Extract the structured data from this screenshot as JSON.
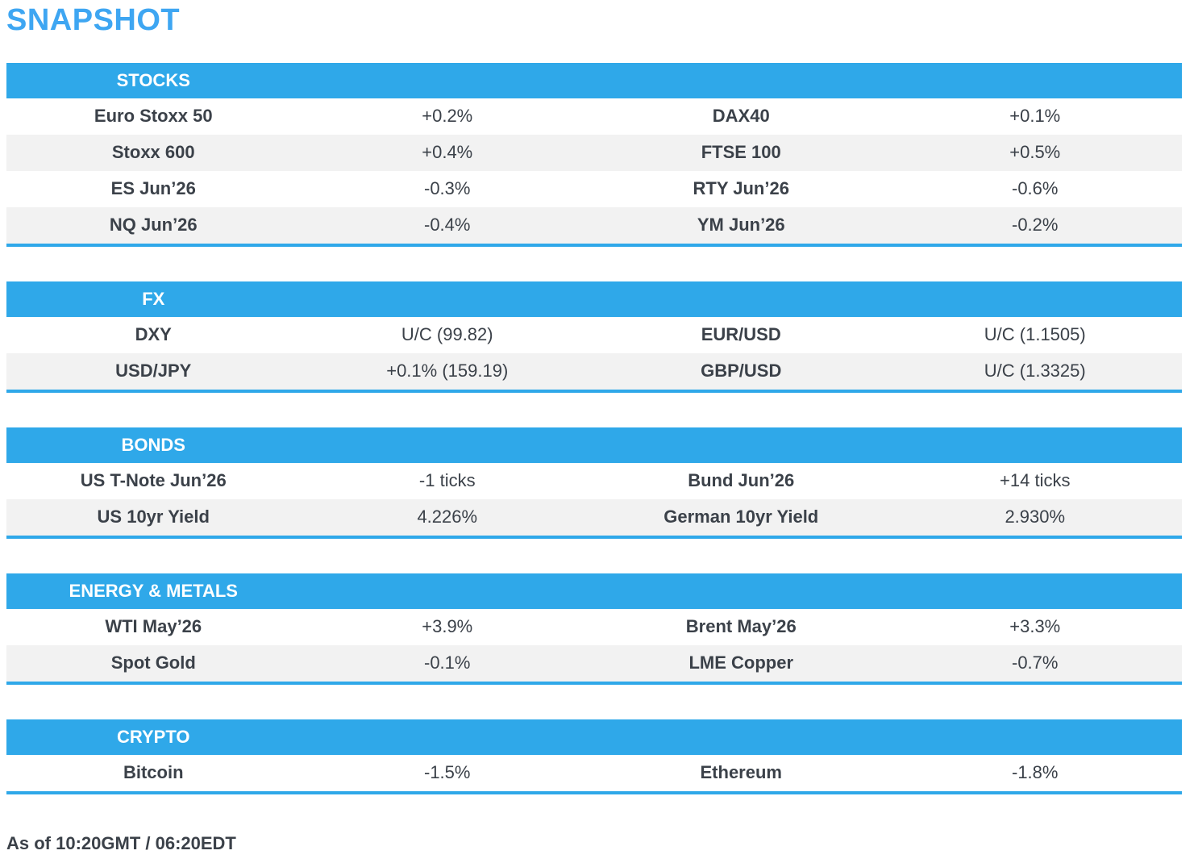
{
  "page": {
    "title": "SNAPSHOT",
    "footer": "As of 10:20GMT / 06:20EDT"
  },
  "colors": {
    "accent_blue_bar": "#2FA8E9",
    "title_blue": "#3EA6F2",
    "row_alt_background": "#F2F2F2",
    "text_dark": "#3B4149"
  },
  "sections": [
    {
      "header": "STOCKS",
      "rows": [
        [
          {
            "label": "Euro Stoxx 50",
            "value": "+0.2%"
          },
          {
            "label": "DAX40",
            "value": "+0.1%"
          }
        ],
        [
          {
            "label": "Stoxx 600",
            "value": "+0.4%"
          },
          {
            "label": "FTSE 100",
            "value": "+0.5%"
          }
        ],
        [
          {
            "label": "ES Jun’26",
            "value": "-0.3%"
          },
          {
            "label": "RTY Jun’26",
            "value": "-0.6%"
          }
        ],
        [
          {
            "label": "NQ Jun’26",
            "value": "-0.4%"
          },
          {
            "label": "YM Jun’26",
            "value": "-0.2%"
          }
        ]
      ]
    },
    {
      "header": "FX",
      "rows": [
        [
          {
            "label": "DXY",
            "value": "U/C (99.82)"
          },
          {
            "label": "EUR/USD",
            "value": "U/C (1.1505)"
          }
        ],
        [
          {
            "label": "USD/JPY",
            "value": "+0.1% (159.19)"
          },
          {
            "label": "GBP/USD",
            "value": "U/C (1.3325)"
          }
        ]
      ]
    },
    {
      "header": "BONDS",
      "rows": [
        [
          {
            "label": "US T-Note Jun’26",
            "value": "-1 ticks"
          },
          {
            "label": "Bund Jun’26",
            "value": "+14 ticks"
          }
        ],
        [
          {
            "label": "US 10yr Yield",
            "value": "4.226%"
          },
          {
            "label": "German 10yr Yield",
            "value": "2.930%"
          }
        ]
      ]
    },
    {
      "header": "ENERGY & METALS",
      "rows": [
        [
          {
            "label": "WTI May’26",
            "value": "+3.9%"
          },
          {
            "label": "Brent May’26",
            "value": "+3.3%"
          }
        ],
        [
          {
            "label": "Spot Gold",
            "value": "-0.1%"
          },
          {
            "label": "LME Copper",
            "value": "-0.7%"
          }
        ]
      ]
    },
    {
      "header": "CRYPTO",
      "rows": [
        [
          {
            "label": "Bitcoin",
            "value": "-1.5%"
          },
          {
            "label": "Ethereum",
            "value": "-1.8%"
          }
        ]
      ]
    }
  ]
}
